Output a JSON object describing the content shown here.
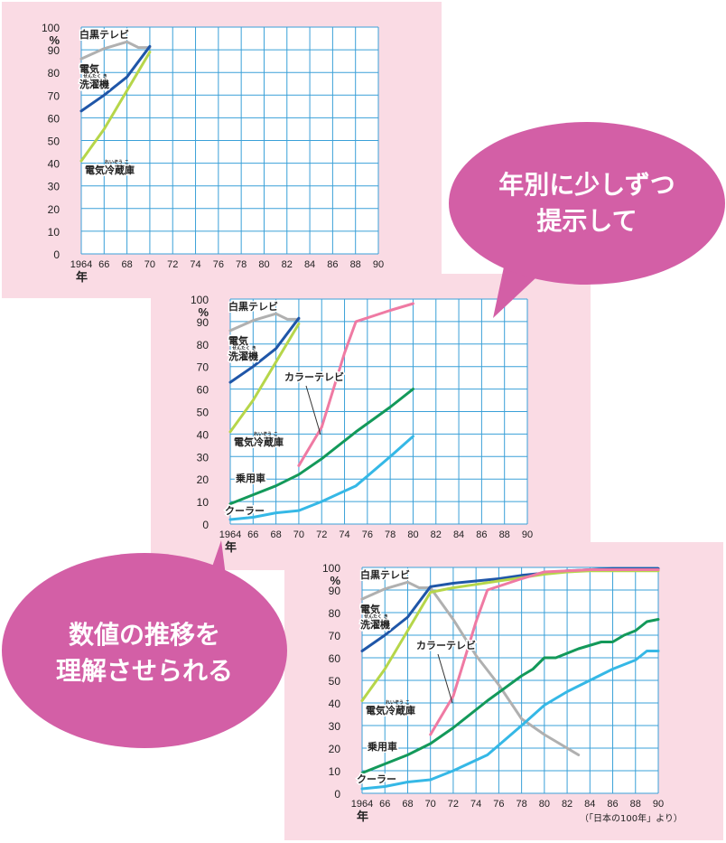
{
  "bubbles": {
    "top": [
      "年別に少しずつ",
      "提示して"
    ],
    "bottom": [
      "数値の推移を",
      "理解させられる"
    ]
  },
  "source_note": "（「日本の100年」より）",
  "colors": {
    "background_panel": "#fadbe4",
    "grid": "#3aa0d8",
    "bubble": "#d35fa6",
    "bw_tv": "#b0b0b0",
    "washer": "#1f56a8",
    "fridge": "#b6d64a",
    "color_tv": "#ef7aa3",
    "car": "#13995a",
    "cooler": "#35b8e6"
  },
  "chart_data": [
    {
      "type": "line",
      "x_tick_labels": [
        "1964",
        "66",
        "68",
        "70",
        "72",
        "74",
        "76",
        "78",
        "80",
        "82",
        "84",
        "86",
        "88",
        "90"
      ],
      "xlabel": "年",
      "ylabel": "%",
      "y_tick_labels": [
        "100",
        "90",
        "80",
        "70",
        "60",
        "50",
        "40",
        "30",
        "20",
        "10",
        "0"
      ],
      "xlim": [
        1964,
        1990
      ],
      "ylim": [
        0,
        100
      ],
      "grid": true,
      "series": [
        {
          "name": "白黒テレビ",
          "color": "#b0b0b0",
          "label_lines": [
            "白黒テレビ"
          ],
          "x": [
            1964,
            1966,
            1968,
            1969,
            1970
          ],
          "y": [
            86,
            90.5,
            93.5,
            91,
            91
          ]
        },
        {
          "name": "電気洗濯機",
          "color": "#1f56a8",
          "label_lines": [
            "電気",
            "洗濯機"
          ],
          "ruby": "せんたく き",
          "x": [
            1964,
            1966,
            1968,
            1970
          ],
          "y": [
            63,
            70,
            78,
            91.5
          ]
        },
        {
          "name": "電気冷蔵庫",
          "color": "#b6d64a",
          "label_lines": [
            "電気冷蔵庫"
          ],
          "ruby": "れいぞう こ",
          "x": [
            1964,
            1966,
            1968,
            1970
          ],
          "y": [
            41,
            55,
            72,
            89
          ]
        }
      ]
    },
    {
      "type": "line",
      "x_tick_labels": [
        "1964",
        "66",
        "68",
        "70",
        "72",
        "74",
        "76",
        "78",
        "80",
        "82",
        "84",
        "86",
        "88",
        "90"
      ],
      "xlabel": "年",
      "ylabel": "%",
      "y_tick_labels": [
        "100",
        "90",
        "80",
        "70",
        "60",
        "50",
        "40",
        "30",
        "20",
        "10",
        "0"
      ],
      "xlim": [
        1964,
        1990
      ],
      "ylim": [
        0,
        100
      ],
      "grid": true,
      "series": [
        {
          "name": "白黒テレビ",
          "color": "#b0b0b0",
          "label_lines": [
            "白黒テレビ"
          ],
          "x": [
            1964,
            1966,
            1968,
            1969,
            1970
          ],
          "y": [
            86,
            90.5,
            93.5,
            91,
            91
          ]
        },
        {
          "name": "電気洗濯機",
          "color": "#1f56a8",
          "label_lines": [
            "電気",
            "洗濯機"
          ],
          "ruby": "せんたく き",
          "x": [
            1964,
            1966,
            1968,
            1970
          ],
          "y": [
            63,
            70,
            78,
            91.5
          ]
        },
        {
          "name": "電気冷蔵庫",
          "color": "#b6d64a",
          "label_lines": [
            "電気冷蔵庫"
          ],
          "ruby": "れいぞう こ",
          "x": [
            1964,
            1966,
            1968,
            1970
          ],
          "y": [
            41,
            55,
            72,
            89
          ]
        },
        {
          "name": "カラーテレビ",
          "color": "#ef7aa3",
          "label_lines": [
            "カラーテレビ"
          ],
          "x": [
            1970,
            1972,
            1974,
            1975,
            1978,
            1980
          ],
          "y": [
            26,
            43,
            76,
            90,
            95,
            98
          ]
        },
        {
          "name": "乗用車",
          "color": "#13995a",
          "label_lines": [
            "乗用車"
          ],
          "x": [
            1964,
            1966,
            1968,
            1970,
            1972,
            1975,
            1978,
            1980
          ],
          "y": [
            9,
            13,
            17,
            22,
            29,
            41,
            52,
            60
          ]
        },
        {
          "name": "クーラー",
          "color": "#35b8e6",
          "label_lines": [
            "クーラー"
          ],
          "x": [
            1964,
            1966,
            1968,
            1970,
            1972,
            1975,
            1978,
            1980
          ],
          "y": [
            2,
            3,
            5,
            6,
            10,
            17,
            30,
            39
          ]
        }
      ]
    },
    {
      "type": "line",
      "x_tick_labels": [
        "1964",
        "66",
        "68",
        "70",
        "72",
        "74",
        "76",
        "78",
        "80",
        "82",
        "84",
        "86",
        "88",
        "90"
      ],
      "xlabel": "年",
      "ylabel": "%",
      "y_tick_labels": [
        "100",
        "90",
        "80",
        "70",
        "60",
        "50",
        "40",
        "30",
        "20",
        "10",
        "0"
      ],
      "xlim": [
        1964,
        1990
      ],
      "ylim": [
        0,
        100
      ],
      "grid": true,
      "series": [
        {
          "name": "白黒テレビ",
          "color": "#b0b0b0",
          "label_lines": [
            "白黒テレビ"
          ],
          "x": [
            1964,
            1966,
            1968,
            1969,
            1970,
            1972,
            1974,
            1976,
            1978,
            1980,
            1982,
            1983
          ],
          "y": [
            86,
            90.5,
            93.5,
            91,
            91,
            77,
            61,
            48,
            33,
            26,
            20,
            17
          ]
        },
        {
          "name": "電気洗濯機",
          "color": "#1f56a8",
          "label_lines": [
            "電気",
            "洗濯機"
          ],
          "ruby": "せんたく き",
          "x": [
            1964,
            1966,
            1968,
            1970,
            1972,
            1974,
            1976,
            1978,
            1980,
            1982,
            1984,
            1986,
            1988,
            1990
          ],
          "y": [
            63,
            70,
            78,
            91.5,
            93,
            94,
            95,
            96.5,
            97.5,
            98.5,
            99,
            99.5,
            99.5,
            99.5
          ]
        },
        {
          "name": "電気冷蔵庫",
          "color": "#b6d64a",
          "label_lines": [
            "電気冷蔵庫"
          ],
          "ruby": "れいぞう こ",
          "x": [
            1964,
            1966,
            1968,
            1970,
            1972,
            1974,
            1976,
            1978,
            1980,
            1982,
            1984,
            1986,
            1988,
            1990
          ],
          "y": [
            41,
            55,
            72,
            89,
            91,
            92.5,
            94,
            95.5,
            97,
            98,
            98.5,
            98.5,
            98.5,
            98.5
          ]
        },
        {
          "name": "カラーテレビ",
          "color": "#ef7aa3",
          "label_lines": [
            "カラーテレビ"
          ],
          "x": [
            1970,
            1972,
            1974,
            1975,
            1978,
            1980,
            1982,
            1984,
            1986,
            1988,
            1990
          ],
          "y": [
            26,
            43,
            76,
            90,
            95,
            98,
            98.5,
            99,
            99,
            99,
            99
          ]
        },
        {
          "name": "乗用車",
          "color": "#13995a",
          "label_lines": [
            "乗用車"
          ],
          "x": [
            1964,
            1966,
            1968,
            1970,
            1972,
            1975,
            1978,
            1979,
            1980,
            1981,
            1983,
            1985,
            1986,
            1987,
            1988,
            1989,
            1990
          ],
          "y": [
            9,
            13,
            17,
            22,
            29,
            41,
            52,
            55,
            60,
            60,
            64,
            67,
            67,
            70,
            72,
            76,
            77
          ]
        },
        {
          "name": "クーラー",
          "color": "#35b8e6",
          "label_lines": [
            "クーラー"
          ],
          "x": [
            1964,
            1966,
            1968,
            1970,
            1972,
            1975,
            1978,
            1980,
            1982,
            1984,
            1986,
            1988,
            1989,
            1990
          ],
          "y": [
            2,
            3,
            5,
            6,
            10,
            17,
            30,
            39,
            45,
            50,
            55,
            59,
            63,
            63
          ]
        }
      ]
    }
  ]
}
